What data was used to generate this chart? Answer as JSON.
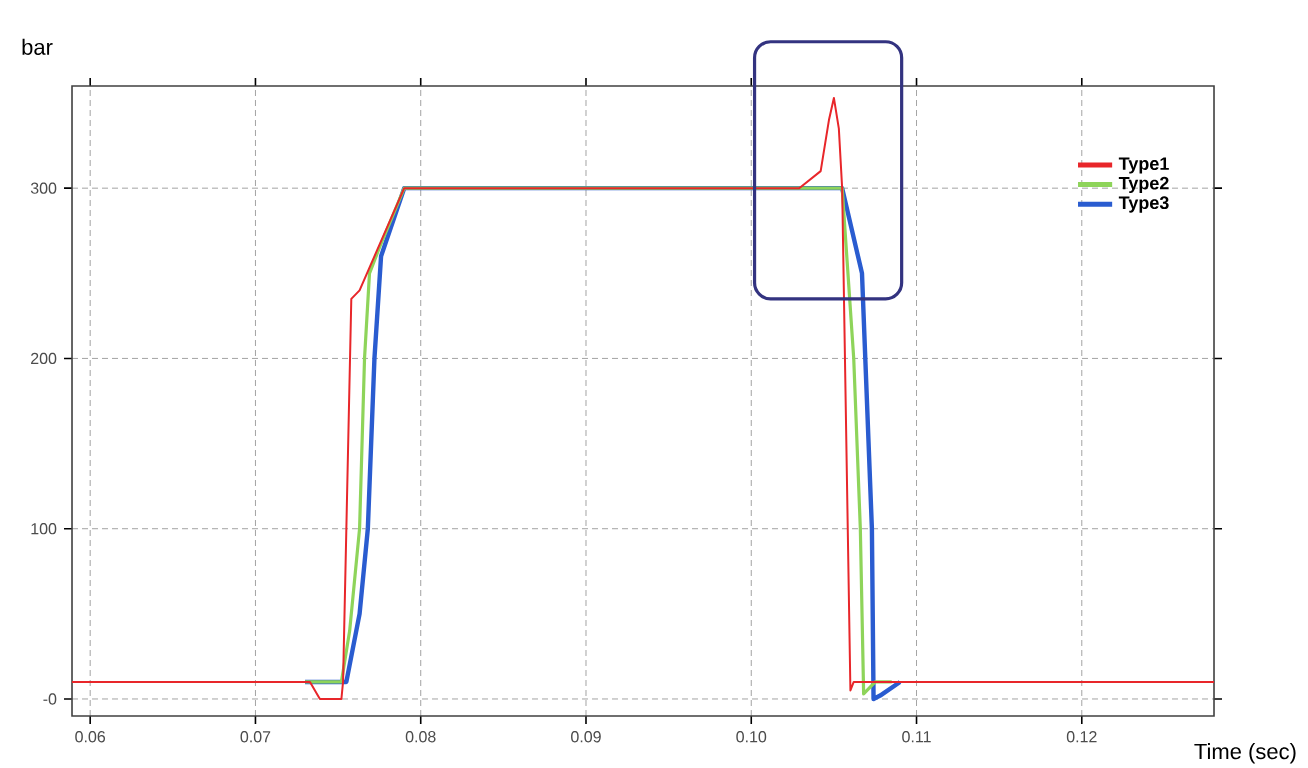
{
  "chart_data": {
    "type": "line",
    "xlabel": "Time (sec)",
    "ylabel": "bar",
    "xlim": [
      0.0589,
      0.128
    ],
    "ylim": [
      -10,
      360
    ],
    "xticks": [
      0.06,
      0.07,
      0.08,
      0.09,
      {
        "value": 0.1,
        "label": "0.10"
      },
      0.11,
      0.12
    ],
    "yticks": [
      {
        "value": 0,
        "label": "-0"
      },
      100,
      200,
      300
    ],
    "grid": true,
    "legend": "top right",
    "marker": "none",
    "line_style": "solid",
    "series": [
      {
        "name": "Type1",
        "color": "#e8262a",
        "x": [
          0.0589,
          0.0733,
          0.0739,
          0.0752,
          0.0753,
          0.0758,
          0.0763,
          0.079,
          0.1029,
          0.1042,
          0.1047,
          0.105,
          0.1053,
          0.1055,
          0.106,
          0.1062,
          0.128
        ],
        "values": [
          10,
          10,
          0,
          0,
          10,
          235,
          240,
          300,
          300,
          310,
          340,
          353,
          335,
          300,
          5,
          10,
          10
        ]
      },
      {
        "name": "Type2",
        "color": "#8ed45a",
        "x": [
          0.073,
          0.0752,
          0.0757,
          0.0763,
          0.0766,
          0.0769,
          0.0775,
          0.079,
          0.1055,
          0.1062,
          0.1066,
          0.1068,
          0.1075,
          0.1085
        ],
        "values": [
          10,
          10,
          40,
          100,
          200,
          250,
          265,
          300,
          300,
          200,
          100,
          3,
          10,
          10
        ]
      },
      {
        "name": "Type3",
        "color": "#2a5cd0",
        "x": [
          0.073,
          0.0755,
          0.0763,
          0.0768,
          0.0772,
          0.0776,
          0.079,
          0.1055,
          0.1067,
          0.1073,
          0.1074,
          0.1078,
          0.109
        ],
        "values": [
          10,
          10,
          50,
          100,
          200,
          260,
          300,
          300,
          250,
          100,
          0,
          2,
          10
        ]
      }
    ]
  }
}
